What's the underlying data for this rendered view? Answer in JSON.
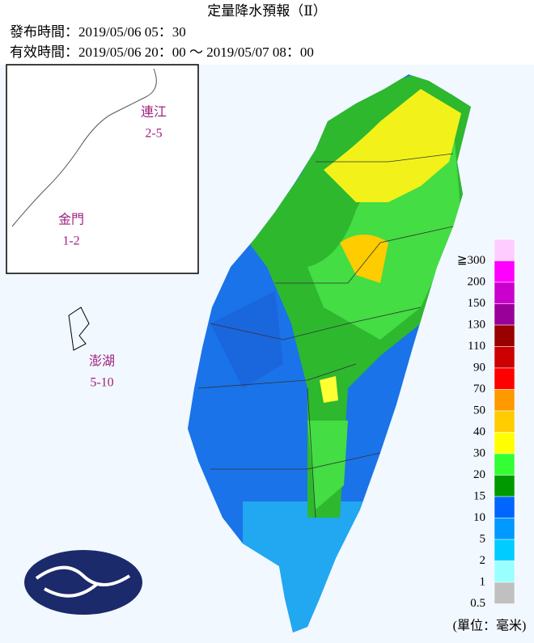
{
  "header": {
    "title": "定量降水預報（Ⅱ）",
    "issued": "發布時間：2019/05/06 05：30",
    "valid": "有效時間：2019/05/06 20：00 ～ 2019/05/07 08：00"
  },
  "insets": [
    {
      "name": "連江",
      "range": "2-5"
    },
    {
      "name": "金門",
      "range": "1-2"
    },
    {
      "name": "澎湖",
      "range": "5-10"
    }
  ],
  "legend": {
    "items": [
      {
        "label": "≧300",
        "color": "#ffccff"
      },
      {
        "label": "200",
        "color": "#ff00ff"
      },
      {
        "label": "150",
        "color": "#cc00cc"
      },
      {
        "label": "130",
        "color": "#990099"
      },
      {
        "label": "110",
        "color": "#990000"
      },
      {
        "label": "90",
        "color": "#cc0000"
      },
      {
        "label": "70",
        "color": "#ff0000"
      },
      {
        "label": "50",
        "color": "#ff9900"
      },
      {
        "label": "40",
        "color": "#ffcc00"
      },
      {
        "label": "30",
        "color": "#ffff00"
      },
      {
        "label": "20",
        "color": "#33ff33"
      },
      {
        "label": "15",
        "color": "#009900"
      },
      {
        "label": "10",
        "color": "#0066ff"
      },
      {
        "label": "5",
        "color": "#0099ff"
      },
      {
        "label": "2",
        "color": "#00ccff"
      },
      {
        "label": "1",
        "color": "#99ffff"
      },
      {
        "label": "0.5",
        "color": "#c0c0c0"
      }
    ],
    "unit": "(單位：毫米)"
  }
}
